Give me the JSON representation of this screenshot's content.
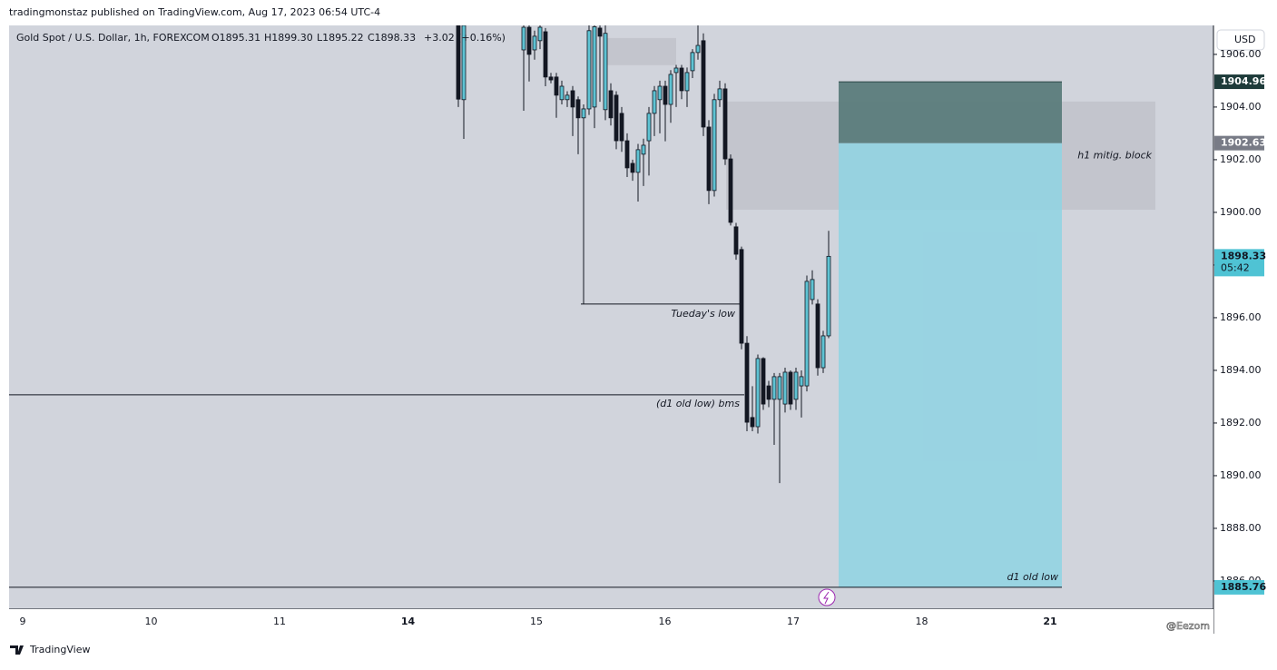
{
  "header": {
    "publisher": "tradingmonstaz published on TradingView.com, Aug 17, 2023 06:54 UTC-4",
    "brand": "TradingView",
    "watermark": "@Eezom",
    "currency": "USD"
  },
  "chart_data": {
    "type": "candlestick",
    "legend": {
      "symbol": "Gold Spot / U.S. Dollar, 1h, FOREXCOM",
      "open": "O1895.31",
      "high": "H1899.30",
      "low": "L1895.22",
      "close": "C1898.33",
      "change": "+3.02 (+0.16%)"
    },
    "x_labels": [
      "9",
      "10",
      "11",
      "14",
      "15",
      "16",
      "17",
      "18",
      "21"
    ],
    "open": [
      1907.1,
      1904.28,
      null,
      null,
      null,
      null,
      null,
      null,
      null,
      null,
      null,
      null,
      1906.17,
      1907.03,
      1906.17,
      1906.52,
      1906.86,
      1905.14,
      1905.14,
      1904.28,
      1904.28,
      1904.62,
      1904.28,
      1903.59,
      1903.93,
      1904.0,
      1907.0,
      1903.9,
      1904.62,
      1904.45,
      1903.76,
      1902.72,
      1901.86,
      1901.52,
      1902.21,
      1902.72,
      1903.76,
      1904.28,
      1904.79,
      1904.1,
      1905.31,
      1905.48,
      1904.62,
      1905.38,
      1906.07,
      1906.52,
      1903.24,
      1900.83,
      1904.28,
      1904.69,
      1902.03,
      1899.45,
      1898.59,
      1895.03,
      1892.21,
      1891.86,
      1894.45,
      1893.41,
      1892.9,
      1892.9,
      1892.72,
      1893.93,
      1892.9,
      1893.41,
      1893.41,
      1896.69,
      1896.52,
      1894.1,
      1895.31
    ],
    "high": [
      1907.1,
      1907.1,
      null,
      null,
      null,
      null,
      null,
      null,
      null,
      null,
      null,
      null,
      1907.1,
      1907.1,
      1906.9,
      1907.1,
      1907.0,
      1905.3,
      1905.3,
      1905.0,
      1904.6,
      1904.8,
      1904.4,
      1904.1,
      1907.1,
      1907.1,
      1907.1,
      1907.1,
      1904.9,
      1904.6,
      1904.0,
      1903.0,
      1902.0,
      1902.6,
      1902.8,
      1904.0,
      1904.8,
      1905.0,
      1905.0,
      1905.4,
      1905.6,
      1905.6,
      1905.5,
      1906.2,
      1907.1,
      1906.8,
      1903.5,
      1904.5,
      1905.0,
      1904.9,
      1902.2,
      1899.6,
      1898.7,
      1895.3,
      1893.4,
      1894.6,
      1894.5,
      1893.6,
      1893.9,
      1893.9,
      1894.1,
      1894.0,
      1894.1,
      1894.0,
      1897.6,
      1897.8,
      1896.7,
      1895.5,
      1899.3
    ],
    "low": [
      1904.0,
      1902.79,
      null,
      null,
      null,
      null,
      null,
      null,
      null,
      null,
      null,
      null,
      1903.86,
      1904.97,
      1905.8,
      1906.2,
      1904.79,
      1904.9,
      1903.59,
      1904.1,
      1904.0,
      1902.9,
      1902.21,
      1896.52,
      1903.7,
      1903.2,
      1904.2,
      1903.5,
      1903.3,
      1902.4,
      1902.3,
      1901.34,
      1901.2,
      1900.41,
      1901.0,
      1901.4,
      1902.9,
      1903.0,
      1902.7,
      1903.4,
      1904.0,
      1904.3,
      1904.0,
      1905.1,
      1905.8,
      1902.9,
      1900.31,
      1900.6,
      1904.0,
      1901.8,
      1899.5,
      1898.2,
      1894.8,
      1891.69,
      1891.69,
      1891.6,
      1892.5,
      1892.6,
      1891.17,
      1889.72,
      1892.4,
      1892.5,
      1892.5,
      1892.21,
      1893.2,
      1896.5,
      1893.8,
      1893.9,
      1895.22
    ],
    "close": [
      1904.3,
      1907.1,
      null,
      null,
      null,
      null,
      null,
      null,
      null,
      null,
      null,
      null,
      1907.03,
      1906.0,
      1906.69,
      1907.03,
      1905.14,
      1905.03,
      1904.45,
      1904.79,
      1904.45,
      1904.0,
      1903.59,
      1903.93,
      1906.9,
      1907.05,
      1906.69,
      1906.8,
      1903.59,
      1902.72,
      1902.72,
      1901.69,
      1901.52,
      1902.38,
      1902.55,
      1903.76,
      1904.62,
      1904.79,
      1904.1,
      1905.24,
      1905.48,
      1904.62,
      1905.31,
      1906.07,
      1906.34,
      1903.24,
      1900.83,
      1904.28,
      1904.69,
      1902.03,
      1899.62,
      1898.41,
      1895.03,
      1892.03,
      1891.86,
      1894.45,
      1892.72,
      1892.9,
      1893.76,
      1893.76,
      1893.93,
      1892.72,
      1893.93,
      1893.76,
      1897.38,
      1897.45,
      1894.1,
      1895.31,
      1898.33
    ],
    "countdown": "05:42",
    "up_color": "#5ec3d3",
    "down_color": "#131722",
    "ylim": [
      1884.93,
      1907.1
    ],
    "yticks": [
      {
        "value": 1886,
        "label": "1886.00"
      },
      {
        "value": 1888,
        "label": "1888.00"
      },
      {
        "value": 1890,
        "label": "1890.00"
      },
      {
        "value": 1892,
        "label": "1892.00"
      },
      {
        "value": 1894,
        "label": "1894.00"
      },
      {
        "value": 1896,
        "label": "1896.00"
      },
      {
        "value": 1898,
        "label": "1898.00"
      },
      {
        "value": 1900,
        "label": "1900.00"
      },
      {
        "value": 1902,
        "label": "1902.00"
      },
      {
        "value": 1904,
        "label": "1904.00"
      },
      {
        "value": 1906,
        "label": "1906.00"
      }
    ],
    "zones": [
      {
        "top": 1906.62,
        "bottom": 1905.59
      },
      {
        "top": 1904.21,
        "bottom": 1900.1,
        "label": "h1 mitig. block"
      }
    ],
    "lines": [
      {
        "value": 1896.52,
        "label": "Tueday's low"
      },
      {
        "value": 1893.07,
        "label": "(d1 old low) bms"
      },
      {
        "value": 1885.76,
        "label": "d1 old low"
      }
    ],
    "position": {
      "stop": 1904.96,
      "entry": 1902.63,
      "target": 1885.76
    }
  }
}
